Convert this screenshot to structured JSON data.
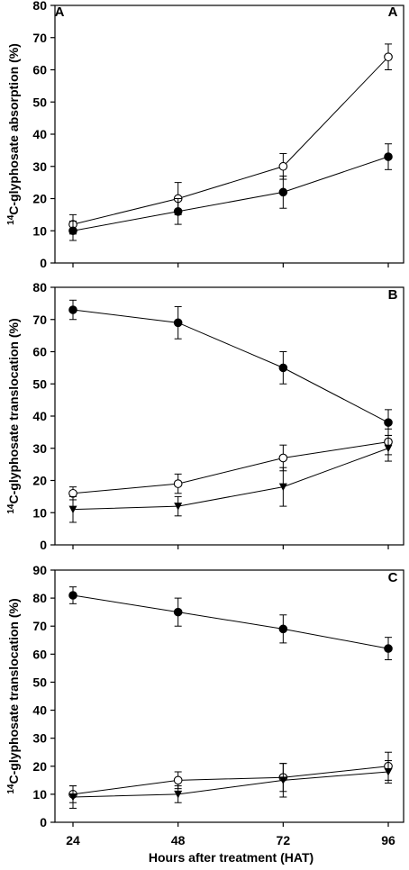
{
  "chart_data": [
    {
      "type": "line",
      "panel": "A",
      "panel_letters": [
        "A",
        "A"
      ],
      "ylabel": "C-glyphosate absorption (%)",
      "ylabel_superscript": "14",
      "x": [
        24,
        48,
        72,
        96
      ],
      "ylim": [
        0,
        80
      ],
      "yticks": [
        0,
        10,
        20,
        30,
        40,
        50,
        60,
        70,
        80
      ],
      "series": [
        {
          "marker": "circle-open",
          "values": [
            12,
            20,
            30,
            64
          ],
          "errors": [
            3,
            5,
            4,
            4
          ]
        },
        {
          "marker": "circle-filled",
          "values": [
            10,
            16,
            22,
            33
          ],
          "errors": [
            3,
            4,
            5,
            4
          ]
        }
      ]
    },
    {
      "type": "line",
      "panel": "B",
      "panel_letters": [
        "B"
      ],
      "ylabel": "C-glyphosate translocation (%)",
      "ylabel_superscript": "14",
      "x": [
        24,
        48,
        72,
        96
      ],
      "ylim": [
        0,
        80
      ],
      "yticks": [
        0,
        10,
        20,
        30,
        40,
        50,
        60,
        70,
        80
      ],
      "series": [
        {
          "marker": "circle-filled",
          "values": [
            73,
            69,
            55,
            38
          ],
          "errors": [
            3,
            5,
            5,
            4
          ]
        },
        {
          "marker": "circle-open",
          "values": [
            16,
            19,
            27,
            32
          ],
          "errors": [
            2,
            3,
            4,
            4
          ]
        },
        {
          "marker": "triangle-down-filled",
          "values": [
            11,
            12,
            18,
            30
          ],
          "errors": [
            4,
            3,
            6,
            4
          ]
        }
      ]
    },
    {
      "type": "line",
      "panel": "C",
      "panel_letters": [
        "C"
      ],
      "ylabel": "C-glyphosate translocation (%)",
      "ylabel_superscript": "14",
      "xlabel": "Hours after treatment (HAT)",
      "x": [
        24,
        48,
        72,
        96
      ],
      "xticks": [
        24,
        48,
        72,
        96
      ],
      "ylim": [
        0,
        90
      ],
      "yticks": [
        0,
        10,
        20,
        30,
        40,
        50,
        60,
        70,
        80,
        90
      ],
      "series": [
        {
          "marker": "circle-filled",
          "values": [
            81,
            75,
            69,
            62
          ],
          "errors": [
            3,
            5,
            5,
            4
          ]
        },
        {
          "marker": "circle-open",
          "values": [
            10,
            15,
            16,
            20
          ],
          "errors": [
            3,
            3,
            5,
            5
          ]
        },
        {
          "marker": "triangle-down-filled",
          "values": [
            9,
            10,
            15,
            18
          ],
          "errors": [
            4,
            3,
            6,
            4
          ]
        }
      ]
    }
  ]
}
